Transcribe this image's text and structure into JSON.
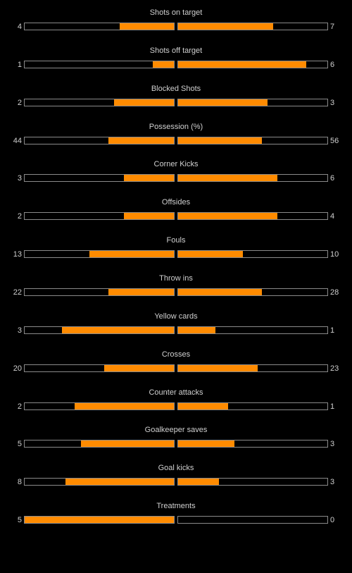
{
  "colors": {
    "background": "#000000",
    "fill": "#ff8b00",
    "bar_border": "#8a8a8a",
    "text": "#d0d0d0"
  },
  "stats": [
    {
      "label": "Shots on target",
      "home": "4",
      "away": "7",
      "home_share": 0.364,
      "away_share": 0.636
    },
    {
      "label": "Shots off target",
      "home": "1",
      "away": "6",
      "home_share": 0.143,
      "away_share": 0.857
    },
    {
      "label": "Blocked Shots",
      "home": "2",
      "away": "3",
      "home_share": 0.4,
      "away_share": 0.6
    },
    {
      "label": "Possession (%)",
      "home": "44",
      "away": "56",
      "home_share": 0.44,
      "away_share": 0.56
    },
    {
      "label": "Corner Kicks",
      "home": "3",
      "away": "6",
      "home_share": 0.333,
      "away_share": 0.667
    },
    {
      "label": "Offsides",
      "home": "2",
      "away": "4",
      "home_share": 0.333,
      "away_share": 0.667
    },
    {
      "label": "Fouls",
      "home": "13",
      "away": "10",
      "home_share": 0.565,
      "away_share": 0.435
    },
    {
      "label": "Throw ins",
      "home": "22",
      "away": "28",
      "home_share": 0.44,
      "away_share": 0.56
    },
    {
      "label": "Yellow cards",
      "home": "3",
      "away": "1",
      "home_share": 0.75,
      "away_share": 0.25
    },
    {
      "label": "Crosses",
      "home": "20",
      "away": "23",
      "home_share": 0.465,
      "away_share": 0.535
    },
    {
      "label": "Counter attacks",
      "home": "2",
      "away": "1",
      "home_share": 0.667,
      "away_share": 0.333
    },
    {
      "label": "Goalkeeper saves",
      "home": "5",
      "away": "3",
      "home_share": 0.625,
      "away_share": 0.375
    },
    {
      "label": "Goal kicks",
      "home": "8",
      "away": "3",
      "home_share": 0.727,
      "away_share": 0.273
    },
    {
      "label": "Treatments",
      "home": "5",
      "away": "0",
      "home_share": 1.0,
      "away_share": 0.0
    }
  ]
}
